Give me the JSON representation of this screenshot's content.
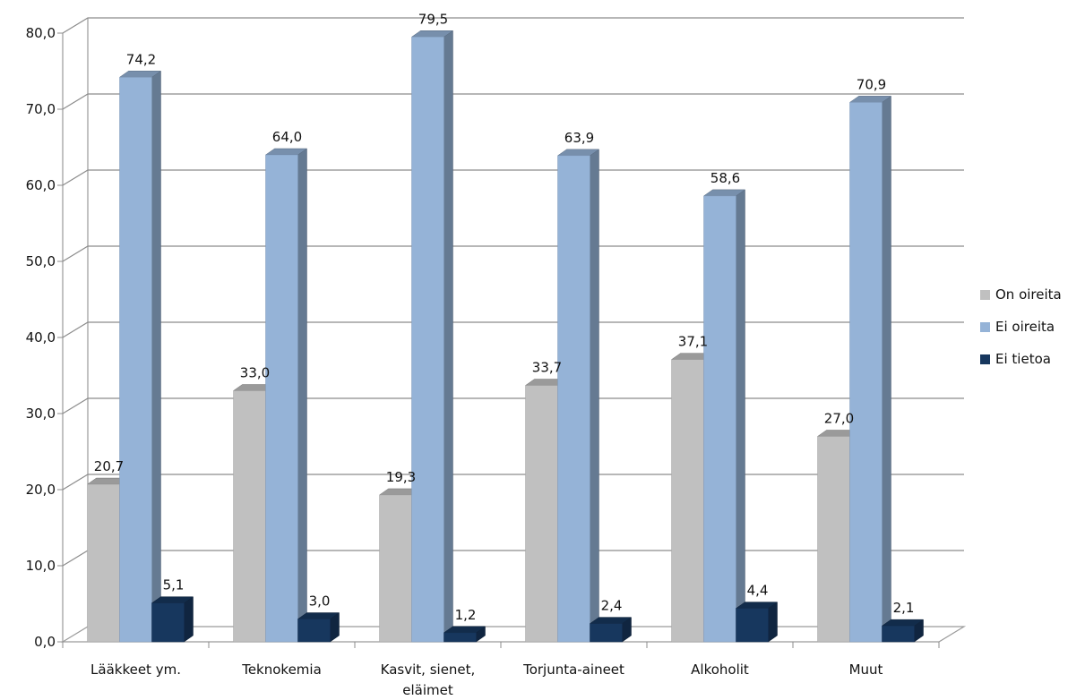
{
  "chart_data": {
    "type": "bar",
    "title": "",
    "xlabel": "",
    "ylabel": "",
    "ylim": [
      0,
      80
    ],
    "ytick_labels": [
      "0,0",
      "10,0",
      "20,0",
      "30,0",
      "40,0",
      "50,0",
      "60,0",
      "70,0",
      "80,0"
    ],
    "grid": true,
    "legend_position": "right",
    "style": "3d-clustered-column",
    "categories": [
      "Lääkkeet ym.",
      "Teknokemia",
      "Kasvit, sienet, eläimet",
      "Torjunta-aineet",
      "Alkoholit",
      "Muut"
    ],
    "category_label_lines": [
      [
        "Lääkkeet ym."
      ],
      [
        "Teknokemia"
      ],
      [
        "Kasvit, sienet,",
        "eläimet"
      ],
      [
        "Torjunta-aineet"
      ],
      [
        "Alkoholit"
      ],
      [
        "Muut"
      ]
    ],
    "series": [
      {
        "name": "On oireita",
        "color": "#c0c0c0",
        "values": [
          20.7,
          33.0,
          19.3,
          33.7,
          37.1,
          27.0
        ],
        "labels": [
          "20,7",
          "33,0",
          "19,3",
          "33,7",
          "37,1",
          "27,0"
        ]
      },
      {
        "name": "Ei oireita",
        "color": "#95b3d7",
        "values": [
          74.2,
          64.0,
          79.5,
          63.9,
          58.6,
          70.9
        ],
        "labels": [
          "74,2",
          "64,0",
          "79,5",
          "63,9",
          "58,6",
          "70,9"
        ]
      },
      {
        "name": "Ei tietoa",
        "color": "#17375e",
        "values": [
          5.1,
          3.0,
          1.2,
          2.4,
          4.4,
          2.1
        ],
        "labels": [
          "5,1",
          "3,0",
          "1,2",
          "2,4",
          "4,4",
          "2,1"
        ]
      }
    ]
  }
}
